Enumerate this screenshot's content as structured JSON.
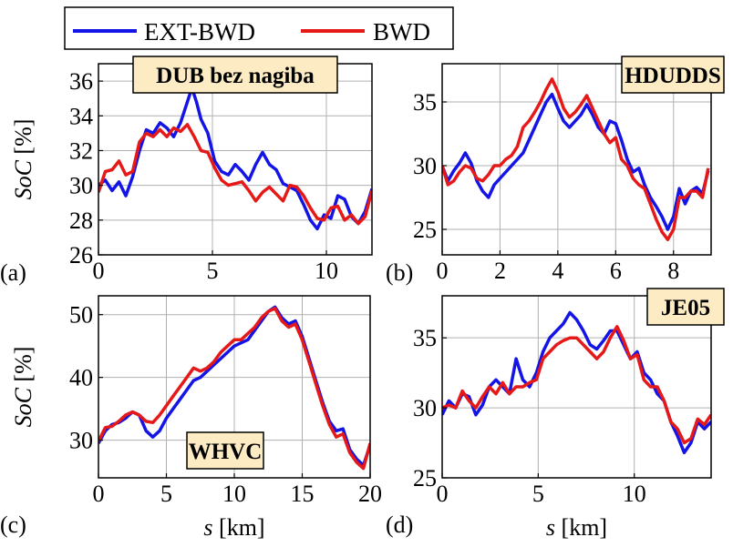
{
  "legend": {
    "entries": [
      {
        "label": "EXT-BWD",
        "color": "#1414e6"
      },
      {
        "label": "BWD",
        "color": "#e61919"
      }
    ]
  },
  "ylabel_prefix": "SoC",
  "ylabel_suffix": " [%]",
  "xlabel_prefix": "s",
  "xlabel_suffix": " [km]",
  "chart_data": [
    {
      "type": "line",
      "panel": "(a)",
      "title": "DUB bez nagiba",
      "xlim": [
        0,
        12
      ],
      "ylim": [
        26,
        37
      ],
      "xticks": [
        0,
        5,
        10
      ],
      "yticks": [
        26,
        28,
        30,
        32,
        34,
        36
      ],
      "grid": true,
      "label_position": "top-center",
      "series": [
        {
          "name": "EXT-BWD",
          "color": "#1414e6",
          "x": [
            0,
            0.3,
            0.6,
            0.9,
            1.2,
            1.5,
            1.8,
            2.1,
            2.4,
            2.7,
            3.0,
            3.3,
            3.6,
            3.9,
            4.1,
            4.3,
            4.5,
            4.8,
            5.1,
            5.4,
            5.7,
            6.0,
            6.3,
            6.6,
            6.9,
            7.2,
            7.5,
            7.8,
            8.1,
            8.4,
            8.7,
            9.0,
            9.3,
            9.6,
            9.9,
            10.2,
            10.5,
            10.8,
            11.1,
            11.4,
            11.7,
            12.0
          ],
          "y": [
            30.0,
            30.3,
            29.7,
            30.2,
            29.4,
            30.5,
            32.0,
            33.2,
            33.0,
            33.6,
            33.3,
            32.8,
            33.6,
            34.8,
            35.6,
            34.8,
            33.8,
            33.0,
            31.4,
            30.8,
            30.6,
            31.2,
            30.8,
            30.3,
            31.2,
            31.9,
            31.2,
            30.9,
            30.1,
            29.9,
            29.7,
            28.9,
            28.0,
            27.5,
            28.3,
            28.1,
            29.4,
            29.2,
            28.2,
            27.8,
            28.5,
            29.8
          ]
        },
        {
          "name": "BWD",
          "color": "#e61919",
          "x": [
            0,
            0.3,
            0.6,
            0.9,
            1.2,
            1.5,
            1.8,
            2.1,
            2.4,
            2.7,
            3.0,
            3.3,
            3.6,
            3.9,
            4.2,
            4.5,
            4.8,
            5.1,
            5.4,
            5.7,
            6.0,
            6.3,
            6.6,
            6.9,
            7.2,
            7.5,
            7.8,
            8.1,
            8.4,
            8.7,
            9.0,
            9.3,
            9.6,
            9.9,
            10.2,
            10.5,
            10.8,
            11.1,
            11.4,
            11.7,
            12.0
          ],
          "y": [
            29.6,
            30.8,
            30.9,
            31.4,
            30.6,
            30.8,
            32.5,
            33.0,
            32.8,
            33.2,
            32.8,
            33.3,
            33.1,
            33.5,
            32.8,
            32.0,
            31.9,
            31.0,
            30.3,
            30.0,
            30.1,
            30.2,
            29.7,
            29.1,
            29.6,
            29.9,
            29.5,
            29.1,
            30.0,
            29.9,
            29.4,
            28.7,
            28.1,
            28.0,
            28.7,
            28.8,
            28.0,
            28.3,
            27.8,
            28.2,
            29.7
          ]
        }
      ]
    },
    {
      "type": "line",
      "panel": "(b)",
      "title": "HDUDDS",
      "xlim": [
        0,
        9.3
      ],
      "ylim": [
        23,
        38
      ],
      "xticks": [
        0,
        2,
        4,
        6,
        8
      ],
      "yticks": [
        25,
        30,
        35
      ],
      "grid": true,
      "label_position": "top-right",
      "series": [
        {
          "name": "EXT-BWD",
          "color": "#1414e6",
          "x": [
            0,
            0.2,
            0.4,
            0.6,
            0.8,
            1.0,
            1.2,
            1.4,
            1.6,
            1.8,
            2.0,
            2.2,
            2.4,
            2.6,
            2.8,
            3.0,
            3.2,
            3.4,
            3.6,
            3.8,
            4.0,
            4.2,
            4.4,
            4.6,
            4.8,
            5.0,
            5.2,
            5.4,
            5.6,
            5.8,
            6.0,
            6.2,
            6.4,
            6.6,
            6.8,
            7.0,
            7.2,
            7.4,
            7.6,
            7.8,
            8.0,
            8.2,
            8.4,
            8.6,
            8.8,
            9.0,
            9.2
          ],
          "y": [
            30.0,
            28.8,
            29.6,
            30.2,
            31.0,
            30.2,
            28.8,
            28.0,
            27.5,
            28.5,
            29.0,
            29.5,
            30.0,
            30.5,
            31.0,
            32.0,
            33.0,
            34.0,
            35.0,
            35.6,
            34.5,
            33.5,
            33.0,
            33.5,
            34.0,
            34.8,
            34.0,
            33.0,
            32.5,
            33.5,
            33.3,
            32.0,
            30.5,
            29.5,
            29.8,
            28.5,
            27.5,
            26.8,
            26.0,
            25.0,
            26.0,
            28.2,
            27.0,
            28.0,
            28.3,
            27.8,
            29.6
          ]
        },
        {
          "name": "BWD",
          "color": "#e61919",
          "x": [
            0,
            0.2,
            0.4,
            0.6,
            0.8,
            1.0,
            1.2,
            1.4,
            1.6,
            1.8,
            2.0,
            2.2,
            2.4,
            2.6,
            2.8,
            3.0,
            3.2,
            3.4,
            3.6,
            3.8,
            4.0,
            4.2,
            4.4,
            4.6,
            4.8,
            5.0,
            5.2,
            5.4,
            5.6,
            5.8,
            6.0,
            6.2,
            6.4,
            6.6,
            6.8,
            7.0,
            7.2,
            7.4,
            7.6,
            7.8,
            8.0,
            8.2,
            8.4,
            8.6,
            8.8,
            9.0,
            9.2
          ],
          "y": [
            30.0,
            28.5,
            28.8,
            29.5,
            30.0,
            29.8,
            29.0,
            28.8,
            29.3,
            30.0,
            30.0,
            30.5,
            30.8,
            31.5,
            33.0,
            33.5,
            34.2,
            35.0,
            36.0,
            36.8,
            35.8,
            34.5,
            33.8,
            34.2,
            34.8,
            35.5,
            34.5,
            33.5,
            32.5,
            31.8,
            32.2,
            30.5,
            30.0,
            29.0,
            28.5,
            28.2,
            27.0,
            25.8,
            24.8,
            24.2,
            25.0,
            27.5,
            27.5,
            28.0,
            28.0,
            27.5,
            29.8
          ]
        }
      ]
    },
    {
      "type": "line",
      "panel": "(c)",
      "title": "WHVC",
      "xlim": [
        0,
        20
      ],
      "ylim": [
        24,
        53
      ],
      "xticks": [
        0,
        5,
        10,
        15,
        20
      ],
      "yticks": [
        30,
        40,
        50
      ],
      "grid": true,
      "label_position": "bottom-center",
      "series": [
        {
          "name": "EXT-BWD",
          "color": "#1414e6",
          "x": [
            0,
            0.5,
            1.0,
            1.5,
            2.0,
            2.5,
            3.0,
            3.5,
            4.0,
            4.5,
            5.0,
            5.5,
            6.0,
            6.5,
            7.0,
            7.5,
            8.0,
            8.5,
            9.0,
            9.5,
            10.0,
            10.5,
            11.0,
            11.5,
            12.0,
            12.5,
            13.0,
            13.5,
            14.0,
            14.5,
            15.0,
            15.5,
            16.0,
            16.5,
            17.0,
            17.5,
            18.0,
            18.5,
            19.0,
            19.5,
            20.0
          ],
          "y": [
            29.5,
            31.5,
            32.5,
            32.8,
            33.5,
            34.5,
            34.0,
            31.5,
            30.5,
            31.5,
            33.5,
            35.0,
            36.5,
            38.0,
            39.5,
            40.0,
            41.0,
            42.0,
            43.0,
            44.0,
            45.0,
            45.5,
            46.0,
            47.5,
            49.0,
            50.5,
            51.2,
            49.5,
            48.5,
            49.0,
            46.5,
            43.0,
            39.5,
            36.0,
            33.0,
            31.5,
            31.8,
            28.5,
            27.0,
            26.0,
            29.2
          ]
        },
        {
          "name": "BWD",
          "color": "#e61919",
          "x": [
            0,
            0.5,
            1.0,
            1.5,
            2.0,
            2.5,
            3.0,
            3.5,
            4.0,
            4.5,
            5.0,
            5.5,
            6.0,
            6.5,
            7.0,
            7.5,
            8.0,
            8.5,
            9.0,
            9.5,
            10.0,
            10.5,
            11.0,
            11.5,
            12.0,
            12.5,
            13.0,
            13.5,
            14.0,
            14.5,
            15.0,
            15.5,
            16.0,
            16.5,
            17.0,
            17.5,
            18.0,
            18.5,
            19.0,
            19.5,
            20.0
          ],
          "y": [
            29.8,
            32.0,
            32.2,
            33.0,
            34.0,
            34.5,
            34.0,
            33.0,
            32.8,
            34.0,
            35.5,
            37.0,
            38.5,
            40.0,
            41.5,
            41.0,
            41.5,
            42.5,
            44.0,
            45.0,
            46.0,
            46.0,
            47.0,
            48.0,
            49.5,
            50.5,
            51.0,
            49.0,
            48.0,
            48.5,
            46.0,
            42.5,
            39.0,
            35.5,
            32.5,
            30.5,
            31.0,
            28.0,
            26.5,
            25.5,
            29.5
          ]
        }
      ]
    },
    {
      "type": "line",
      "panel": "(d)",
      "title": "JE05",
      "xlim": [
        0,
        14
      ],
      "ylim": [
        25,
        38
      ],
      "xticks": [
        0,
        5,
        10
      ],
      "yticks": [
        25,
        30,
        35
      ],
      "grid": true,
      "label_position": "top-right",
      "series": [
        {
          "name": "EXT-BWD",
          "color": "#1414e6",
          "x": [
            0,
            0.35,
            0.7,
            1.05,
            1.4,
            1.75,
            2.1,
            2.45,
            2.8,
            3.15,
            3.5,
            3.85,
            4.2,
            4.55,
            4.9,
            5.25,
            5.6,
            5.95,
            6.3,
            6.65,
            7.0,
            7.35,
            7.7,
            8.05,
            8.4,
            8.75,
            9.1,
            9.45,
            9.8,
            10.15,
            10.5,
            10.85,
            11.2,
            11.55,
            11.9,
            12.25,
            12.6,
            12.95,
            13.3,
            13.65,
            14.0
          ],
          "y": [
            29.5,
            30.5,
            30.0,
            31.0,
            30.8,
            29.5,
            30.2,
            31.5,
            32.0,
            31.5,
            31.0,
            33.5,
            32.0,
            31.5,
            32.5,
            34.0,
            35.0,
            35.5,
            36.0,
            36.8,
            36.3,
            35.5,
            34.5,
            34.2,
            34.8,
            35.5,
            35.5,
            34.5,
            33.5,
            34.0,
            32.5,
            32.0,
            31.0,
            30.5,
            29.0,
            28.0,
            26.8,
            27.5,
            29.0,
            28.5,
            29.0
          ]
        },
        {
          "name": "BWD",
          "color": "#e61919",
          "x": [
            0,
            0.35,
            0.7,
            1.05,
            1.4,
            1.75,
            2.1,
            2.45,
            2.8,
            3.15,
            3.5,
            3.85,
            4.2,
            4.55,
            4.9,
            5.25,
            5.6,
            5.95,
            6.3,
            6.65,
            7.0,
            7.35,
            7.7,
            8.05,
            8.4,
            8.75,
            9.1,
            9.45,
            9.8,
            10.15,
            10.5,
            10.85,
            11.2,
            11.55,
            11.9,
            12.25,
            12.6,
            12.95,
            13.3,
            13.65,
            14.0
          ],
          "y": [
            30.0,
            30.2,
            30.0,
            31.2,
            30.5,
            30.0,
            30.8,
            31.5,
            31.0,
            31.8,
            31.0,
            31.5,
            31.5,
            31.8,
            32.0,
            33.5,
            34.0,
            34.5,
            34.8,
            35.0,
            35.0,
            34.5,
            34.0,
            33.5,
            34.0,
            35.0,
            35.8,
            34.8,
            33.5,
            33.8,
            32.0,
            31.5,
            31.5,
            30.5,
            29.0,
            28.5,
            27.5,
            27.8,
            29.2,
            28.8,
            29.5
          ]
        }
      ]
    }
  ]
}
